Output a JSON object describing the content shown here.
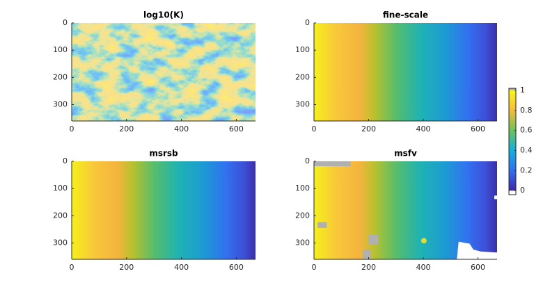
{
  "chart_data": [
    {
      "type": "image",
      "title": "log10(K)",
      "field": "texture",
      "xlim": [
        0,
        670
      ],
      "ylim": [
        0,
        360
      ],
      "ydir": "reverse",
      "xticks": [
        0,
        200,
        400,
        600
      ],
      "yticks": [
        0,
        100,
        200,
        300
      ]
    },
    {
      "type": "image",
      "title": "fine-scale",
      "field": "gradient",
      "xlim": [
        0,
        670
      ],
      "ylim": [
        0,
        360
      ],
      "ydir": "reverse",
      "xticks": [
        0,
        200,
        400,
        600
      ],
      "yticks": [
        0,
        100,
        200,
        300
      ]
    },
    {
      "type": "image",
      "title": "msrsb",
      "field": "gradient",
      "xlim": [
        0,
        670
      ],
      "ylim": [
        0,
        360
      ],
      "ydir": "reverse",
      "xticks": [
        0,
        200,
        400,
        600
      ],
      "yticks": [
        0,
        100,
        200,
        300
      ]
    },
    {
      "type": "image",
      "title": "msfv",
      "field": "gradient-blotched",
      "xlim": [
        0,
        670
      ],
      "ylim": [
        0,
        360
      ],
      "ydir": "reverse",
      "xticks": [
        0,
        200,
        400,
        600
      ],
      "yticks": [
        0,
        100,
        200,
        300
      ]
    },
    {
      "type": "colorbar",
      "ylim": [
        -0.04,
        1.02
      ],
      "yticks": [
        0,
        0.2,
        0.4,
        0.6,
        0.8,
        1
      ]
    }
  ]
}
